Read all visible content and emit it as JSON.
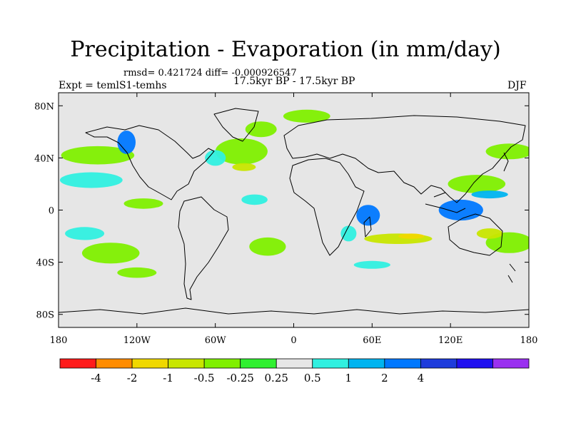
{
  "title": "Precipitation - Evaporation (in mm/day)",
  "stats": "rmsd= 0.421724 diff= -0.000926547",
  "period": "17.5kyr BP - 17.5kyr BP",
  "experiment": "Expt = temlS1-temhs",
  "season": "DJF",
  "chart_data": {
    "type": "filled-contour map",
    "variable": "Precipitation - Evaporation",
    "units": "mm/day",
    "lon_range": [
      -180,
      180
    ],
    "lat_range": [
      -90,
      90
    ],
    "x_ticks": [
      {
        "value": -180,
        "label": "180"
      },
      {
        "value": -120,
        "label": "120W"
      },
      {
        "value": -60,
        "label": "60W"
      },
      {
        "value": 0,
        "label": "0"
      },
      {
        "value": 60,
        "label": "60E"
      },
      {
        "value": 120,
        "label": "120E"
      },
      {
        "value": 180,
        "label": "180"
      }
    ],
    "y_ticks": [
      {
        "value": 80,
        "label": "80N"
      },
      {
        "value": 40,
        "label": "40N"
      },
      {
        "value": 0,
        "label": "0"
      },
      {
        "value": -40,
        "label": "40S"
      },
      {
        "value": -80,
        "label": "80S"
      }
    ],
    "colorbar": {
      "colors": [
        "#ff1a1a",
        "#ff8c00",
        "#f0d800",
        "#c8e600",
        "#80f000",
        "#30f030",
        "#e6e6e6",
        "#30f0e0",
        "#00b4f0",
        "#0078ff",
        "#1e3cdc",
        "#2010f0",
        "#9a30f0"
      ],
      "levels": [
        {
          "value": -4,
          "label": "-4"
        },
        {
          "value": -2,
          "label": "-2"
        },
        {
          "value": -1,
          "label": "-1"
        },
        {
          "value": -0.5,
          "label": "-0.5"
        },
        {
          "value": -0.25,
          "label": "-0.25"
        },
        {
          "value": 0.25,
          "label": "0.25"
        },
        {
          "value": 0.5,
          "label": "0.5"
        },
        {
          "value": 1,
          "label": "1"
        },
        {
          "value": 2,
          "label": "2"
        },
        {
          "value": 4,
          "label": "4"
        }
      ]
    },
    "regions": [
      {
        "name": "north-pacific-storm-track",
        "lon": -150,
        "lat": 42,
        "rlon": 28,
        "rlat": 7,
        "level": -0.5
      },
      {
        "name": "nw-north-america-coast",
        "lon": -128,
        "lat": 52,
        "rlon": 7,
        "rlat": 9,
        "level": 2
      },
      {
        "name": "north-atlantic-storm-track",
        "lon": -40,
        "lat": 45,
        "rlon": 20,
        "rlat": 10,
        "level": -0.5
      },
      {
        "name": "western-north-atlantic",
        "lon": -60,
        "lat": 40,
        "rlon": 8,
        "rlat": 6,
        "level": 0.5
      },
      {
        "name": "central-atlantic-dry",
        "lon": -38,
        "lat": 33,
        "rlon": 9,
        "rlat": 3,
        "level": -1
      },
      {
        "name": "north-atlantic-high-lat",
        "lon": -25,
        "lat": 62,
        "rlon": 12,
        "rlat": 6,
        "level": -0.5
      },
      {
        "name": "east-pacific-north",
        "lon": -155,
        "lat": 23,
        "rlon": 24,
        "rlat": 6,
        "level": 0.5
      },
      {
        "name": "east-pacific-itcz",
        "lon": -115,
        "lat": 5,
        "rlon": 15,
        "rlat": 4,
        "level": -0.5
      },
      {
        "name": "south-pacific-subtropics",
        "lon": -140,
        "lat": -33,
        "rlon": 22,
        "rlat": 8,
        "level": -0.5
      },
      {
        "name": "south-pacific-convergence",
        "lon": -160,
        "lat": -18,
        "rlon": 15,
        "rlat": 5,
        "level": 0.5
      },
      {
        "name": "southern-ocean-pacific",
        "lon": -120,
        "lat": -48,
        "rlon": 15,
        "rlat": 4,
        "level": -0.5
      },
      {
        "name": "south-atlantic",
        "lon": -20,
        "lat": -28,
        "rlon": 14,
        "rlat": 7,
        "level": -0.5
      },
      {
        "name": "equatorial-atlantic",
        "lon": -30,
        "lat": 8,
        "rlon": 10,
        "rlat": 4,
        "level": 0.5
      },
      {
        "name": "africa-east-coast-wet",
        "lon": 42,
        "lat": -18,
        "rlon": 6,
        "rlat": 6,
        "level": 0.5
      },
      {
        "name": "western-indian-ocean",
        "lon": 57,
        "lat": -4,
        "rlon": 9,
        "rlat": 8,
        "level": 2
      },
      {
        "name": "southern-indian-ocean",
        "lon": 80,
        "lat": -22,
        "rlon": 26,
        "rlat": 4,
        "level": -1
      },
      {
        "name": "south-indian-dry-core",
        "lon": 90,
        "lat": -20,
        "rlon": 10,
        "rlat": 2,
        "level": -2
      },
      {
        "name": "maritime-continent",
        "lon": 128,
        "lat": 0,
        "rlon": 17,
        "rlat": 8,
        "level": 2
      },
      {
        "name": "north-west-pacific-dry",
        "lon": 140,
        "lat": 20,
        "rlon": 22,
        "rlat": 7,
        "level": -0.5
      },
      {
        "name": "north-west-pacific-wet",
        "lon": 150,
        "lat": 12,
        "rlon": 14,
        "rlat": 3,
        "level": 1
      },
      {
        "name": "north-east-pacific-45n",
        "lon": 165,
        "lat": 45,
        "rlon": 18,
        "rlat": 6,
        "level": -0.5
      },
      {
        "name": "southwest-pacific",
        "lon": 165,
        "lat": -25,
        "rlon": 18,
        "rlat": 8,
        "level": -0.5
      },
      {
        "name": "australia-north-dry",
        "lon": 150,
        "lat": -18,
        "rlon": 10,
        "rlat": 4,
        "level": -1
      },
      {
        "name": "southern-indian-ocean-40s",
        "lon": 60,
        "lat": -42,
        "rlon": 14,
        "rlat": 3,
        "level": 0.5
      },
      {
        "name": "arctic-atlantic-sector",
        "lon": 10,
        "lat": 72,
        "rlon": 18,
        "rlat": 5,
        "level": -0.5
      }
    ]
  }
}
